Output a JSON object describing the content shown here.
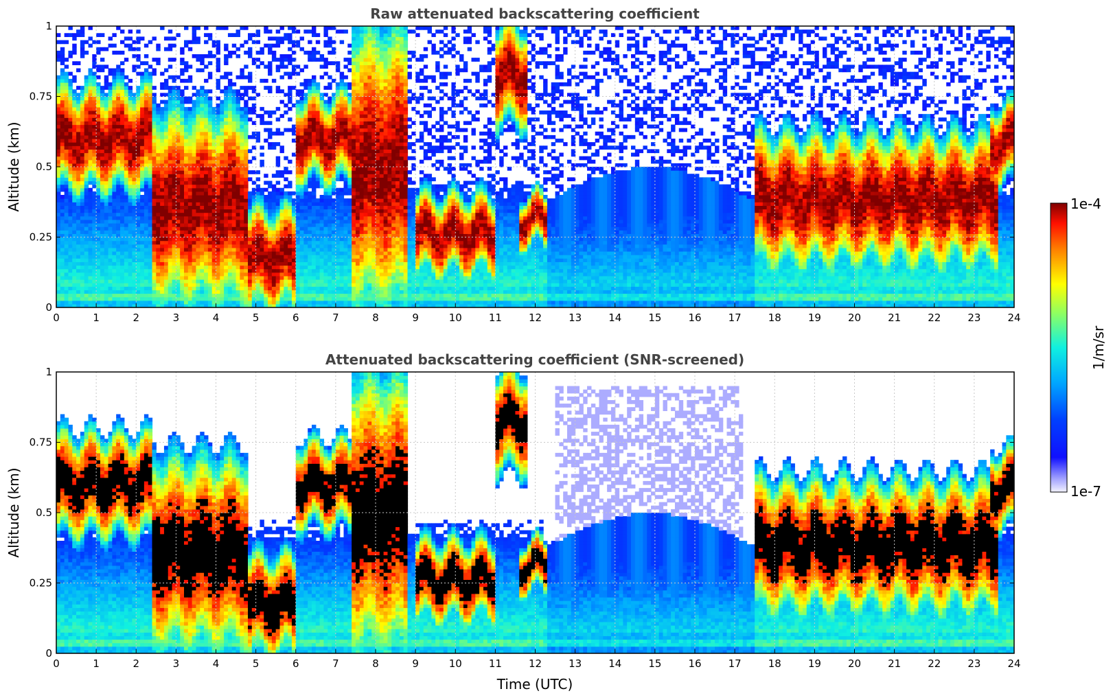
{
  "chart_data": [
    {
      "type": "heatmap",
      "title": "Raw attenuated backscattering coefficient",
      "xlabel": "",
      "ylabel": "Altitude (km)",
      "xlim": [
        0,
        24
      ],
      "ylim": [
        0,
        1
      ],
      "x_ticks": [
        "0",
        "1",
        "2",
        "3",
        "4",
        "5",
        "6",
        "7",
        "8",
        "9",
        "10",
        "11",
        "12",
        "13",
        "14",
        "15",
        "16",
        "17",
        "18",
        "19",
        "20",
        "21",
        "22",
        "23",
        "24"
      ],
      "y_ticks": [
        "0",
        "0.25",
        "0.5",
        "0.75",
        "1"
      ],
      "grid": true,
      "screened": false,
      "layers": [
        {
          "t0": 0.0,
          "t1": 2.4,
          "h_base": 0.42,
          "h_top": 0.78,
          "peak": "1e-4"
        },
        {
          "t0": 2.4,
          "t1": 4.8,
          "h_base": 0.02,
          "h_top": 0.7,
          "peak": "1e-4"
        },
        {
          "t0": 4.8,
          "t1": 6.0,
          "h_base": 0.0,
          "h_top": 0.35,
          "peak": "1e-4"
        },
        {
          "t0": 6.0,
          "t1": 7.4,
          "h_base": 0.45,
          "h_top": 0.75,
          "peak": "1e-4"
        },
        {
          "t0": 7.4,
          "t1": 8.8,
          "h_base": 0.0,
          "h_top": 1.0,
          "peak": "1e-4"
        },
        {
          "t0": 9.0,
          "t1": 11.0,
          "h_base": 0.12,
          "h_top": 0.4,
          "peak": "1e-4"
        },
        {
          "t0": 11.0,
          "t1": 11.8,
          "h_base": 0.65,
          "h_top": 1.0,
          "peak": "1e-4"
        },
        {
          "t0": 11.6,
          "t1": 12.3,
          "h_base": 0.22,
          "h_top": 0.4,
          "peak": "1e-4"
        },
        {
          "t0": 17.5,
          "t1": 23.6,
          "h_base": 0.15,
          "h_top": 0.62,
          "peak": "1e-4"
        },
        {
          "t0": 23.4,
          "t1": 24.0,
          "h_base": 0.45,
          "h_top": 0.72,
          "peak": "1e-4"
        }
      ]
    },
    {
      "type": "heatmap",
      "title": "Attenuated backscattering coefficient (SNR-screened)",
      "xlabel": "Time (UTC)",
      "ylabel": "Altitude (km)",
      "xlim": [
        0,
        24
      ],
      "ylim": [
        0,
        1
      ],
      "x_ticks": [
        "0",
        "1",
        "2",
        "3",
        "4",
        "5",
        "6",
        "7",
        "8",
        "9",
        "10",
        "11",
        "12",
        "13",
        "14",
        "15",
        "16",
        "17",
        "18",
        "19",
        "20",
        "21",
        "22",
        "23",
        "24"
      ],
      "y_ticks": [
        "0",
        "0.25",
        "0.5",
        "0.75",
        "1"
      ],
      "grid": true,
      "screened": true
    }
  ],
  "colorbar": {
    "label": "1/m/sr",
    "max_label": "1e-4",
    "min_label": "1e-7",
    "scale": "log",
    "colormap": "jet"
  },
  "colors": {
    "title": "#444444",
    "grid": "#c8c8c8",
    "saturated": "#000000"
  }
}
